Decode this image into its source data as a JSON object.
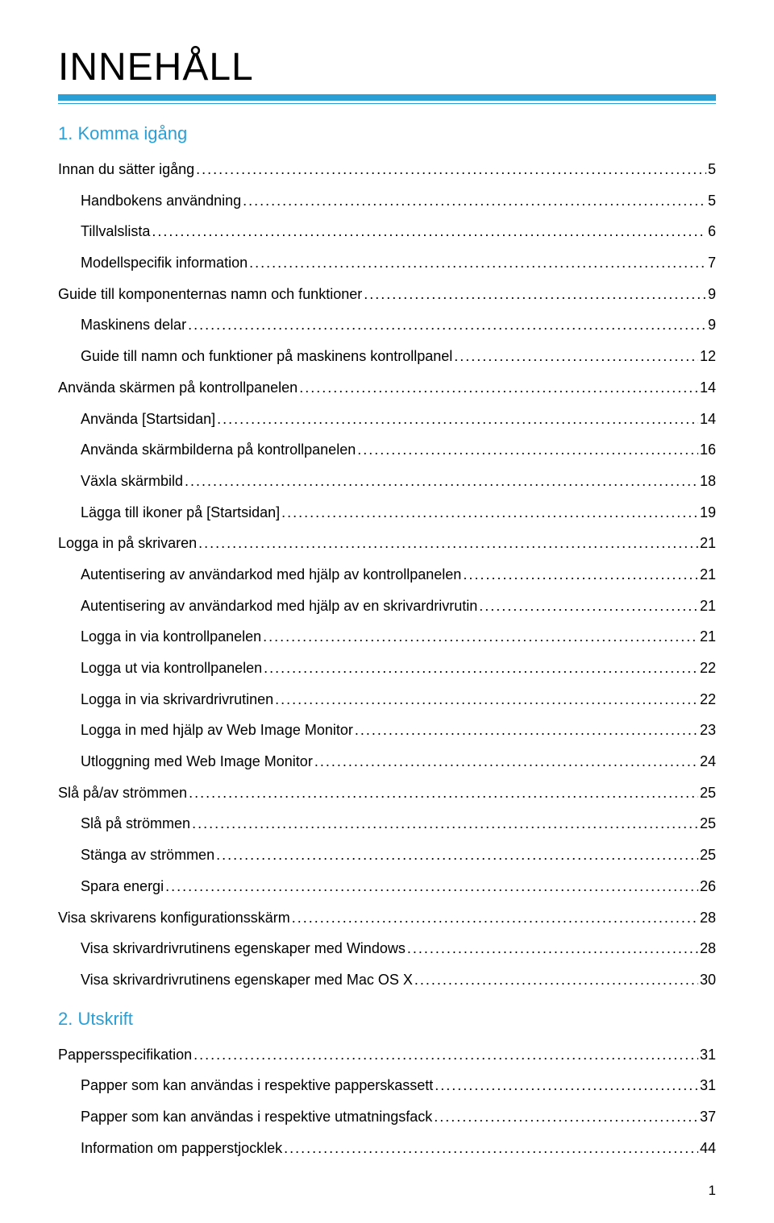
{
  "doc_title": "INNEHÅLL",
  "page_number": "1",
  "colors": {
    "accent": "#2a9fd6",
    "text": "#000000",
    "background": "#ffffff"
  },
  "typography": {
    "title_fontsize_pt": 36,
    "section_fontsize_pt": 17,
    "body_fontsize_pt": 13.5,
    "font_family": "Helvetica Neue, Arial, sans-serif"
  },
  "sections": [
    {
      "heading": "1. Komma igång",
      "entries": [
        {
          "label": "Innan du sätter igång",
          "page": "5",
          "indent": 0
        },
        {
          "label": "Handbokens användning",
          "page": "5",
          "indent": 1
        },
        {
          "label": "Tillvalslista",
          "page": "6",
          "indent": 1
        },
        {
          "label": "Modellspecifik information",
          "page": "7",
          "indent": 1
        },
        {
          "label": "Guide till komponenternas namn och funktioner",
          "page": "9",
          "indent": 0
        },
        {
          "label": "Maskinens delar",
          "page": "9",
          "indent": 1
        },
        {
          "label": "Guide till namn och funktioner på maskinens kontrollpanel",
          "page": "12",
          "indent": 1
        },
        {
          "label": "Använda skärmen på kontrollpanelen",
          "page": "14",
          "indent": 0
        },
        {
          "label": "Använda [Startsidan]",
          "page": "14",
          "indent": 1
        },
        {
          "label": "Använda skärmbilderna på kontrollpanelen",
          "page": "16",
          "indent": 1
        },
        {
          "label": "Växla skärmbild",
          "page": "18",
          "indent": 1
        },
        {
          "label": "Lägga till ikoner på [Startsidan]",
          "page": "19",
          "indent": 1
        },
        {
          "label": "Logga in på skrivaren",
          "page": "21",
          "indent": 0
        },
        {
          "label": "Autentisering av användarkod med hjälp av kontrollpanelen",
          "page": "21",
          "indent": 1
        },
        {
          "label": "Autentisering av användarkod med hjälp av en skrivardrivrutin",
          "page": "21",
          "indent": 1
        },
        {
          "label": "Logga in via kontrollpanelen",
          "page": "21",
          "indent": 1
        },
        {
          "label": "Logga ut via kontrollpanelen",
          "page": "22",
          "indent": 1
        },
        {
          "label": "Logga in via skrivardrivrutinen",
          "page": "22",
          "indent": 1
        },
        {
          "label": "Logga in med hjälp av Web Image Monitor",
          "page": "23",
          "indent": 1
        },
        {
          "label": "Utloggning med Web Image Monitor",
          "page": "24",
          "indent": 1
        },
        {
          "label": "Slå på/av strömmen",
          "page": "25",
          "indent": 0
        },
        {
          "label": "Slå på strömmen",
          "page": "25",
          "indent": 1
        },
        {
          "label": "Stänga av strömmen",
          "page": "25",
          "indent": 1
        },
        {
          "label": "Spara energi",
          "page": "26",
          "indent": 1
        },
        {
          "label": "Visa skrivarens konfigurationsskärm",
          "page": "28",
          "indent": 0
        },
        {
          "label": "Visa skrivardrivrutinens egenskaper med Windows",
          "page": "28",
          "indent": 1
        },
        {
          "label": "Visa skrivardrivrutinens egenskaper med Mac OS X",
          "page": "30",
          "indent": 1
        }
      ]
    },
    {
      "heading": "2. Utskrift",
      "entries": [
        {
          "label": "Pappersspecifikation",
          "page": "31",
          "indent": 0
        },
        {
          "label": "Papper som kan användas i respektive papperskassett",
          "page": "31",
          "indent": 1
        },
        {
          "label": "Papper som kan användas i respektive utmatningsfack",
          "page": "37",
          "indent": 1
        },
        {
          "label": "Information om papperstjocklek",
          "page": "44",
          "indent": 1
        }
      ]
    }
  ]
}
